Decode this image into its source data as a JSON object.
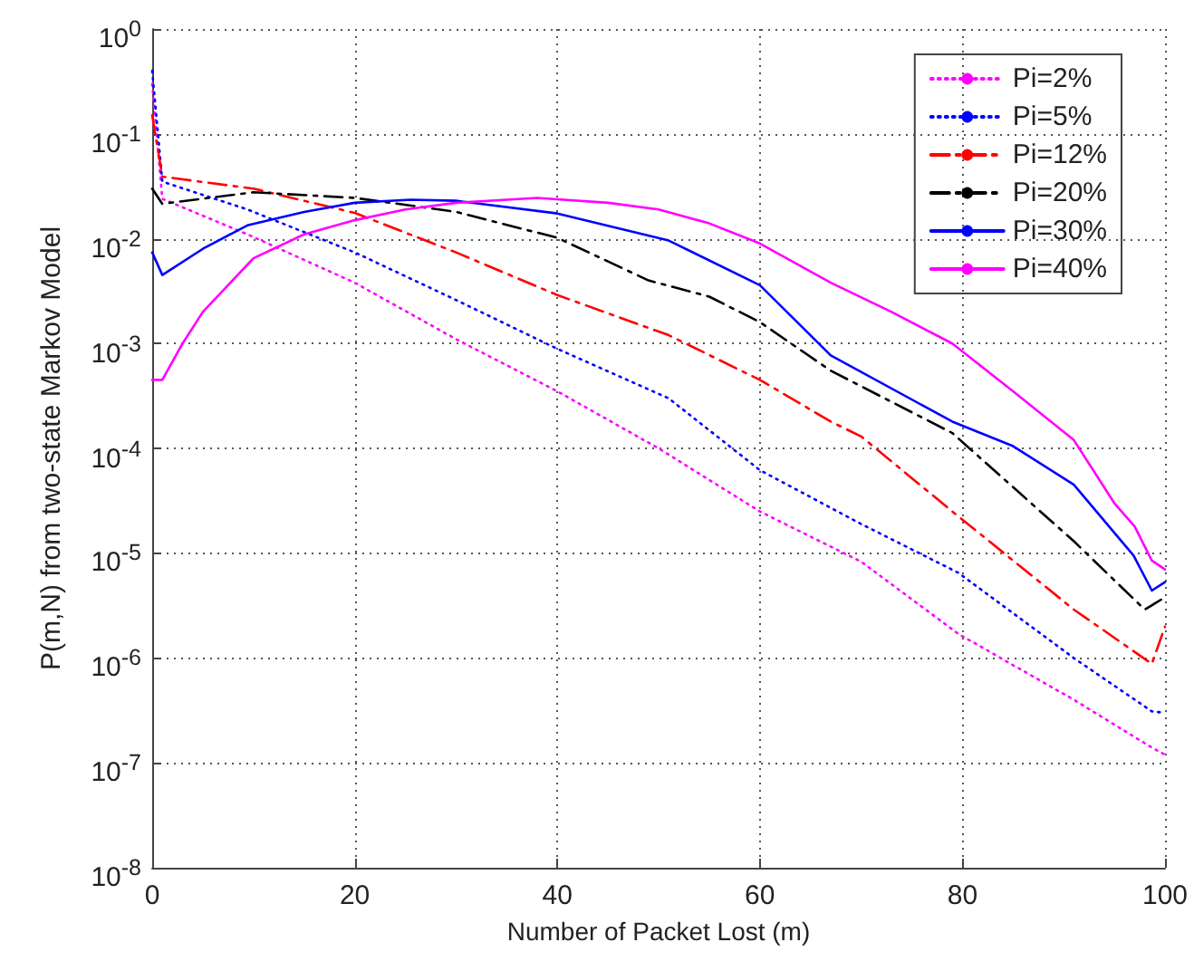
{
  "chart_data": {
    "type": "line",
    "xlabel": "Number of Packet Lost (m)",
    "ylabel": "P(m,N) from two-state Markov Model",
    "log": "y",
    "grid": true,
    "legend": "top right",
    "marker": "none",
    "xlim": [
      0,
      100
    ],
    "xticks": [
      0,
      20,
      40,
      60,
      80,
      100
    ],
    "ylim": [
      1e-08,
      1
    ],
    "yticks": [
      {
        "value": 1,
        "label": "10$^{0}$"
      },
      {
        "value": 0.1,
        "label": "10$^{-1}$"
      },
      {
        "value": 0.01,
        "label": "10$^{-2}$"
      },
      {
        "value": 0.001,
        "label": "10$^{-3}$"
      },
      {
        "value": 0.0001,
        "label": "10$^{-4}$"
      },
      {
        "value": 1e-05,
        "label": "10$^{-5}$"
      },
      {
        "value": 1e-06,
        "label": "10$^{-6}$"
      },
      {
        "value": 1e-07,
        "label": "10$^{-7}$"
      },
      {
        "value": 1e-08,
        "label": "10$^{-8}$"
      }
    ],
    "series": [
      {
        "name": "Pi=2%",
        "color": "#ff00ff",
        "line_style": "dotted",
        "x": [
          0,
          1,
          9.4,
          20,
          30,
          40,
          50,
          60,
          70,
          79.6,
          91,
          98.7,
          100
        ],
        "values": [
          0.3,
          0.024,
          0.011,
          0.0038,
          0.0011,
          0.00035,
          0.0001,
          2.5e-05,
          8.3e-06,
          1.7e-06,
          4e-07,
          1.4e-07,
          1.2e-07
        ]
      },
      {
        "name": "Pi=5%",
        "color": "#0000ff",
        "line_style": "dotted",
        "x": [
          0,
          1,
          9.4,
          20,
          30,
          40,
          51,
          60,
          70,
          79.6,
          91,
          98.7,
          100
        ],
        "values": [
          0.4,
          0.035,
          0.019,
          0.0074,
          0.0026,
          0.00089,
          0.0003,
          6.2e-05,
          1.9e-05,
          6.5e-06,
          1e-06,
          3.1e-07,
          3e-07
        ]
      },
      {
        "name": "Pi=12%",
        "color": "#ff0000",
        "line_style": "dashed",
        "x": [
          0,
          1,
          10,
          20,
          30,
          40,
          51,
          60,
          67,
          70,
          79,
          91,
          98.7,
          100
        ],
        "values": [
          0.15,
          0.039,
          0.03,
          0.0176,
          0.0074,
          0.0029,
          0.0012,
          0.00045,
          0.00018,
          0.00013,
          2.5e-05,
          2.9e-06,
          8.8e-07,
          2e-06
        ]
      },
      {
        "name": "Pi=20%",
        "color": "#000000",
        "line_style": "dashed",
        "x": [
          0,
          1,
          10,
          20,
          30,
          40,
          49,
          55,
          60,
          67,
          79,
          91,
          98,
          100
        ],
        "values": [
          0.03,
          0.0215,
          0.0277,
          0.0245,
          0.018,
          0.0102,
          0.004,
          0.0028,
          0.0016,
          0.00055,
          0.00014,
          1.3e-05,
          2.9e-06,
          3.8e-06
        ]
      },
      {
        "name": "Pi=30%",
        "color": "#0000ff",
        "line_style": "solid",
        "x": [
          0,
          1,
          5,
          9.4,
          15,
          20,
          25.5,
          30,
          40,
          51,
          60,
          67,
          79,
          85,
          91,
          96.9,
          98.7,
          100
        ],
        "values": [
          0.0074,
          0.0045,
          0.008,
          0.0134,
          0.018,
          0.022,
          0.0235,
          0.023,
          0.0174,
          0.0096,
          0.0036,
          0.00077,
          0.00018,
          0.000105,
          4.5e-05,
          9.5e-06,
          4.4e-06,
          5.3e-06
        ]
      },
      {
        "name": "Pi=40%",
        "color": "#ff00ff",
        "line_style": "solid",
        "x": [
          0,
          1,
          3,
          5,
          10,
          15,
          20,
          25,
          30,
          38,
          45,
          50,
          55,
          60,
          67,
          73,
          79,
          85,
          91,
          95,
          97,
          98.7,
          100
        ],
        "values": [
          0.00045,
          0.00045,
          0.001,
          0.002,
          0.0065,
          0.011,
          0.015,
          0.019,
          0.022,
          0.0245,
          0.022,
          0.019,
          0.014,
          0.009,
          0.0038,
          0.002,
          0.001,
          0.00035,
          0.00012,
          3e-05,
          1.8e-05,
          8.5e-06,
          7e-06
        ]
      }
    ]
  }
}
